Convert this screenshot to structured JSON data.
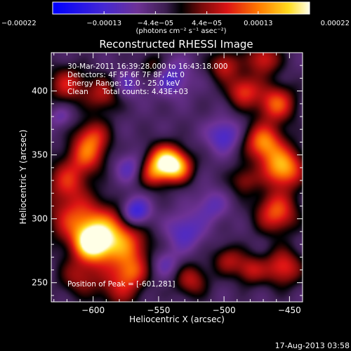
{
  "chart_data": {
    "type": "heatmap",
    "title": "Reconstructed RHESSI Image",
    "xlabel": "Heliocentric X (arcsec)",
    "ylabel": "Heliocentric Y (arcsec)",
    "xlim": [
      -632,
      -440
    ],
    "ylim": [
      235,
      430
    ],
    "x_ticks": [
      -600,
      -550,
      -500,
      -450
    ],
    "y_ticks": [
      250,
      300,
      350,
      400
    ],
    "x_tick_labels": [
      "−600",
      "−550",
      "−500",
      "−450"
    ],
    "y_tick_labels": [
      "250",
      "300",
      "350",
      "400"
    ],
    "annotations": {
      "line1": "30-Mar-2011 16:39:28.000 to 16:43:18.000",
      "line2": "Detectors: 4F 5F 6F 7F 8F, Att 0",
      "line3": "Energy Range: 12.0 - 25.0 keV",
      "line4_left": "Clean",
      "line4_right": "Total counts: 4.43E+03",
      "peak": "Position of Peak = [-601,281]"
    },
    "colorbar": {
      "range": [
        -0.00022,
        0.00022
      ],
      "tick_labels": [
        "−0.00022",
        "−0.00013",
        "−4.4e−05",
        "4.4e−05",
        "0.00013",
        "0.00022"
      ],
      "unit_label": "(photons cm⁻² s⁻¹ asec⁻²)"
    },
    "blobs": [
      {
        "x": -601,
        "y": 281,
        "amp": 0.00022,
        "sigma": 9
      },
      {
        "x": -590,
        "y": 290,
        "amp": 0.00015,
        "sigma": 14
      },
      {
        "x": -575,
        "y": 275,
        "amp": 0.00012,
        "sigma": 14
      },
      {
        "x": -615,
        "y": 300,
        "amp": 0.00012,
        "sigma": 14
      },
      {
        "x": -620,
        "y": 330,
        "amp": 0.00011,
        "sigma": 11
      },
      {
        "x": -605,
        "y": 350,
        "amp": 0.00013,
        "sigma": 10
      },
      {
        "x": -600,
        "y": 365,
        "amp": 0.00011,
        "sigma": 9
      },
      {
        "x": -592,
        "y": 398,
        "amp": 0.0001,
        "sigma": 10
      },
      {
        "x": -620,
        "y": 405,
        "amp": 0.00011,
        "sigma": 10
      },
      {
        "x": -545,
        "y": 345,
        "amp": 0.00022,
        "sigma": 9
      },
      {
        "x": -535,
        "y": 340,
        "amp": 0.00015,
        "sigma": 8
      },
      {
        "x": -555,
        "y": 335,
        "amp": 0.0001,
        "sigma": 8
      },
      {
        "x": -610,
        "y": 255,
        "amp": 9e-05,
        "sigma": 11
      },
      {
        "x": -580,
        "y": 245,
        "amp": 9e-05,
        "sigma": 11
      },
      {
        "x": -570,
        "y": 258,
        "amp": 8e-05,
        "sigma": 8
      },
      {
        "x": -525,
        "y": 252,
        "amp": 0.0001,
        "sigma": 9
      },
      {
        "x": -497,
        "y": 268,
        "amp": 9e-05,
        "sigma": 8
      },
      {
        "x": -480,
        "y": 260,
        "amp": 0.0001,
        "sigma": 8
      },
      {
        "x": -455,
        "y": 262,
        "amp": 0.00013,
        "sigma": 10
      },
      {
        "x": -460,
        "y": 305,
        "amp": 0.00015,
        "sigma": 11
      },
      {
        "x": -455,
        "y": 340,
        "amp": 0.0002,
        "sigma": 11
      },
      {
        "x": -470,
        "y": 360,
        "amp": 0.00017,
        "sigma": 10
      },
      {
        "x": -460,
        "y": 390,
        "amp": 0.00015,
        "sigma": 10
      },
      {
        "x": -485,
        "y": 400,
        "amp": 0.00013,
        "sigma": 9
      },
      {
        "x": -500,
        "y": 420,
        "amp": 0.00011,
        "sigma": 8
      },
      {
        "x": -470,
        "y": 425,
        "amp": 0.00012,
        "sigma": 9
      },
      {
        "x": -555,
        "y": 420,
        "amp": 7e-05,
        "sigma": 7
      },
      {
        "x": -485,
        "y": 330,
        "amp": 8e-05,
        "sigma": 8
      },
      {
        "x": -575,
        "y": 405,
        "amp": -7e-05,
        "sigma": 8
      },
      {
        "x": -540,
        "y": 410,
        "amp": -8e-05,
        "sigma": 10
      },
      {
        "x": -500,
        "y": 365,
        "amp": -9e-05,
        "sigma": 9
      },
      {
        "x": -572,
        "y": 340,
        "amp": -7e-05,
        "sigma": 8
      },
      {
        "x": -510,
        "y": 310,
        "amp": -6e-05,
        "sigma": 9
      },
      {
        "x": -568,
        "y": 305,
        "amp": -0.00013,
        "sigma": 8
      },
      {
        "x": -530,
        "y": 290,
        "amp": -8e-05,
        "sigma": 10
      },
      {
        "x": -545,
        "y": 265,
        "amp": -6e-05,
        "sigma": 8
      },
      {
        "x": -625,
        "y": 380,
        "amp": -5e-05,
        "sigma": 6
      }
    ]
  },
  "footer": {
    "timestamp": "17-Aug-2013 03:58"
  }
}
